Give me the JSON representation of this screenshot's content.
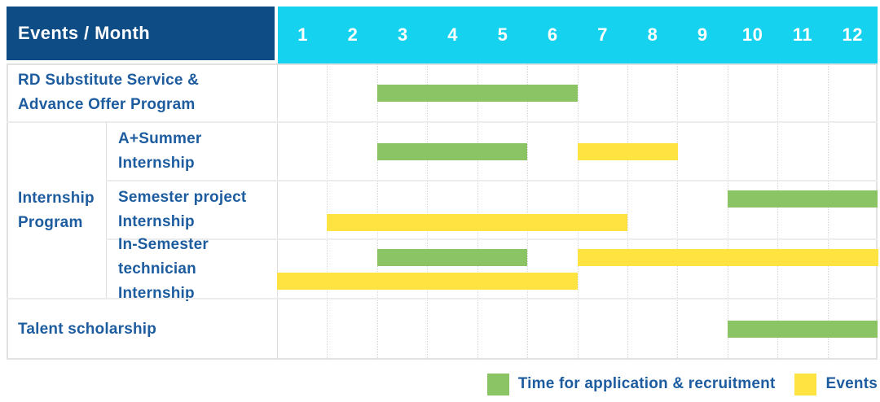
{
  "colors": {
    "header_navy": "#0E4C86",
    "header_cyan": "#15D3EE",
    "recruitment_green": "#8BC464",
    "events_yellow": "#FFE340",
    "label_blue": "#1D5C9F"
  },
  "chart_data": {
    "type": "gantt",
    "corner_label": "Events / Month",
    "columns": [
      "1",
      "2",
      "3",
      "4",
      "5",
      "6",
      "7",
      "8",
      "9",
      "10",
      "11",
      "12"
    ],
    "groups": [
      {
        "label_lines": [
          "RD Substitute Service &",
          "Advance Offer Program"
        ],
        "rows": [
          {
            "label_lines": null,
            "bars": [
              {
                "series": "recruitment",
                "start_month": 3,
                "end_month": 6,
                "lane": "center"
              }
            ]
          }
        ]
      },
      {
        "label_lines": [
          "Internship",
          "Program"
        ],
        "rows": [
          {
            "label_lines": [
              "A+Summer",
              "Internship"
            ],
            "bars": [
              {
                "series": "recruitment",
                "start_month": 3,
                "end_month": 5,
                "lane": "center"
              },
              {
                "series": "events",
                "start_month": 7,
                "end_month": 8,
                "lane": "center"
              }
            ]
          },
          {
            "label_lines": [
              "Semester project",
              "Internship"
            ],
            "bars": [
              {
                "series": "recruitment",
                "start_month": 10,
                "end_month": 12,
                "lane": "upper"
              },
              {
                "series": "events",
                "start_month": 2,
                "end_month": 7,
                "lane": "lower"
              }
            ]
          },
          {
            "label_lines": [
              "In-Semester",
              "technician Internship"
            ],
            "bars": [
              {
                "series": "recruitment",
                "start_month": 3,
                "end_month": 5,
                "lane": "upper"
              },
              {
                "series": "events",
                "start_month": 7,
                "end_month": 12,
                "lane": "upper"
              },
              {
                "series": "events",
                "start_month": 1,
                "end_month": 6,
                "lane": "lower"
              }
            ]
          }
        ]
      },
      {
        "label_lines": [
          "Talent scholarship"
        ],
        "rows": [
          {
            "label_lines": null,
            "bars": [
              {
                "series": "recruitment",
                "start_month": 10,
                "end_month": 12,
                "lane": "center"
              }
            ]
          }
        ]
      }
    ],
    "legend": [
      {
        "series": "recruitment",
        "label": "Time for application & recruitment"
      },
      {
        "series": "events",
        "label": "Events"
      }
    ]
  }
}
